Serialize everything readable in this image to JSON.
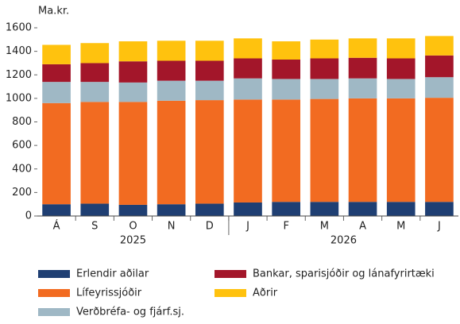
{
  "chart_data": {
    "type": "stacked_bar",
    "y_label": "Ma.kr.",
    "categories": [
      "Á",
      "S",
      "O",
      "N",
      "D",
      "J",
      "F",
      "M",
      "A",
      "M",
      "J"
    ],
    "category_years": [
      "2025",
      "2025",
      "2025",
      "2025",
      "2025",
      "2026",
      "2026",
      "2026",
      "2026",
      "2026",
      "2026"
    ],
    "series": [
      {
        "name": "Erlendir aðilar",
        "color": "#1f3f73",
        "values": [
          100,
          105,
          95,
          100,
          105,
          115,
          120,
          120,
          120,
          120,
          120
        ]
      },
      {
        "name": "Lífeyrissjóðir",
        "color": "#f26b21",
        "values": [
          860,
          865,
          875,
          880,
          880,
          875,
          870,
          875,
          880,
          880,
          885
        ]
      },
      {
        "name": "Verðbréfa- og  fjárf.sj.",
        "color": "#9fb8c5",
        "values": [
          180,
          170,
          165,
          170,
          165,
          180,
          175,
          170,
          170,
          165,
          175
        ]
      },
      {
        "name": "Bankar, sparisjóðir og lánafyrirtæki",
        "color": "#a3162a",
        "values": [
          150,
          160,
          180,
          170,
          170,
          170,
          165,
          175,
          175,
          175,
          185
        ]
      },
      {
        "name": "Aðrir",
        "color": "#ffc20e",
        "values": [
          165,
          170,
          170,
          170,
          170,
          170,
          155,
          160,
          165,
          170,
          165
        ]
      }
    ],
    "ylim": [
      0,
      1600
    ],
    "yticks": [
      0,
      200,
      400,
      600,
      800,
      1000,
      1200,
      1400,
      1600
    ],
    "grid": false
  }
}
